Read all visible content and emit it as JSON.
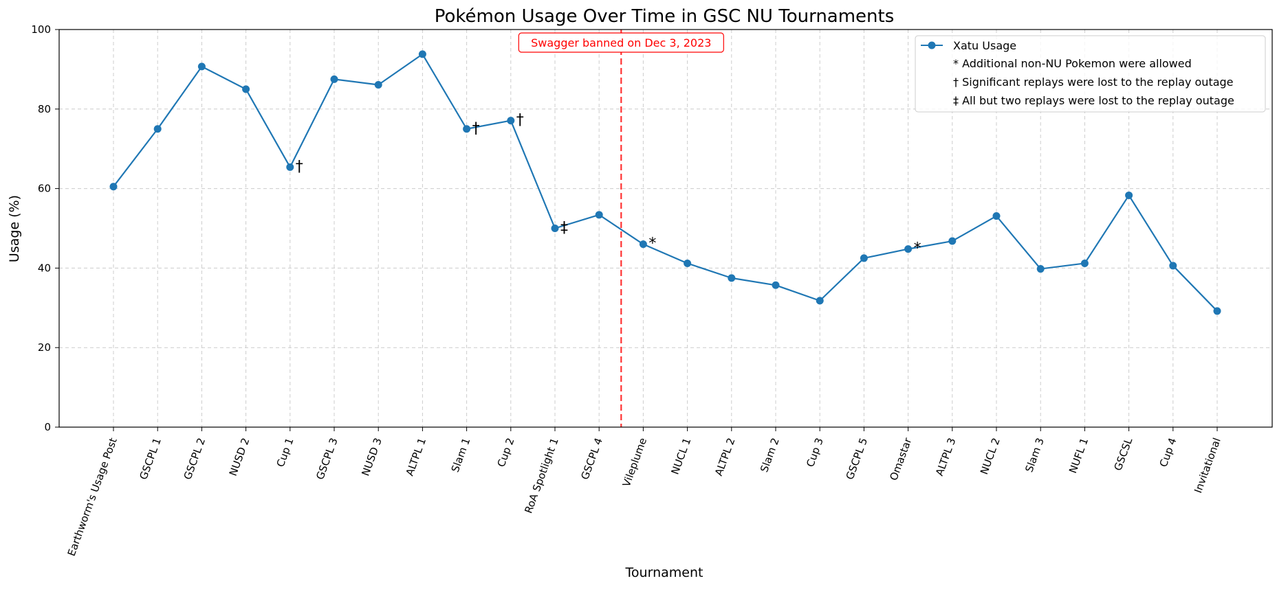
{
  "chart_data": {
    "type": "line",
    "title": "Pokémon Usage Over Time in GSC NU Tournaments",
    "xlabel": "Tournament",
    "ylabel": "Usage (%)",
    "ylim": [
      0,
      100
    ],
    "yticks": [
      0,
      20,
      40,
      60,
      80,
      100
    ],
    "grid": true,
    "legend_position": "top-right",
    "categories": [
      "Earthworm's Usage Post",
      "GSCPL 1",
      "GSCPL 2",
      "NUSD 2",
      "Cup 1",
      "GSCPL 3",
      "NUSD 3",
      "ALTPL 1",
      "Slam 1",
      "Cup 2",
      "RoA Spotlight 1",
      "GSCPL 4",
      "Vileplume",
      "NUCL 1",
      "ALTPL 2",
      "Slam 2",
      "Cup 3",
      "GSCPL 5",
      "Omastar",
      "ALTPL 3",
      "NUCL 2",
      "Slam 3",
      "NUFL 1",
      "GSCSL",
      "Cup 4",
      "Invitational"
    ],
    "series": [
      {
        "name": "Xatu Usage",
        "color": "#1f77b4",
        "values": [
          60.5,
          75.0,
          90.7,
          85.0,
          65.4,
          87.5,
          86.1,
          93.8,
          75.0,
          77.1,
          50.0,
          53.4,
          46.0,
          41.2,
          37.5,
          35.7,
          31.8,
          42.5,
          44.8,
          46.8,
          53.1,
          39.8,
          41.2,
          58.3,
          40.6,
          29.2
        ]
      }
    ],
    "point_notes": [
      {
        "category": "Cup 1",
        "symbol": "†"
      },
      {
        "category": "Slam 1",
        "symbol": "†"
      },
      {
        "category": "Cup 2",
        "symbol": "†"
      },
      {
        "category": "RoA Spotlight 1",
        "symbol": "‡"
      },
      {
        "category": "Vileplume",
        "symbol": "*"
      },
      {
        "category": "Omastar",
        "symbol": "*"
      }
    ],
    "event_line": {
      "after_category": "GSCPL 4",
      "label": "Swagger banned on Dec 3, 2023",
      "color": "#ff0000"
    },
    "legend_notes": [
      "* Additional non-NU Pokemon were allowed",
      "† Significant replays were lost to the replay outage",
      "‡ All but two replays were lost to the replay outage"
    ]
  }
}
